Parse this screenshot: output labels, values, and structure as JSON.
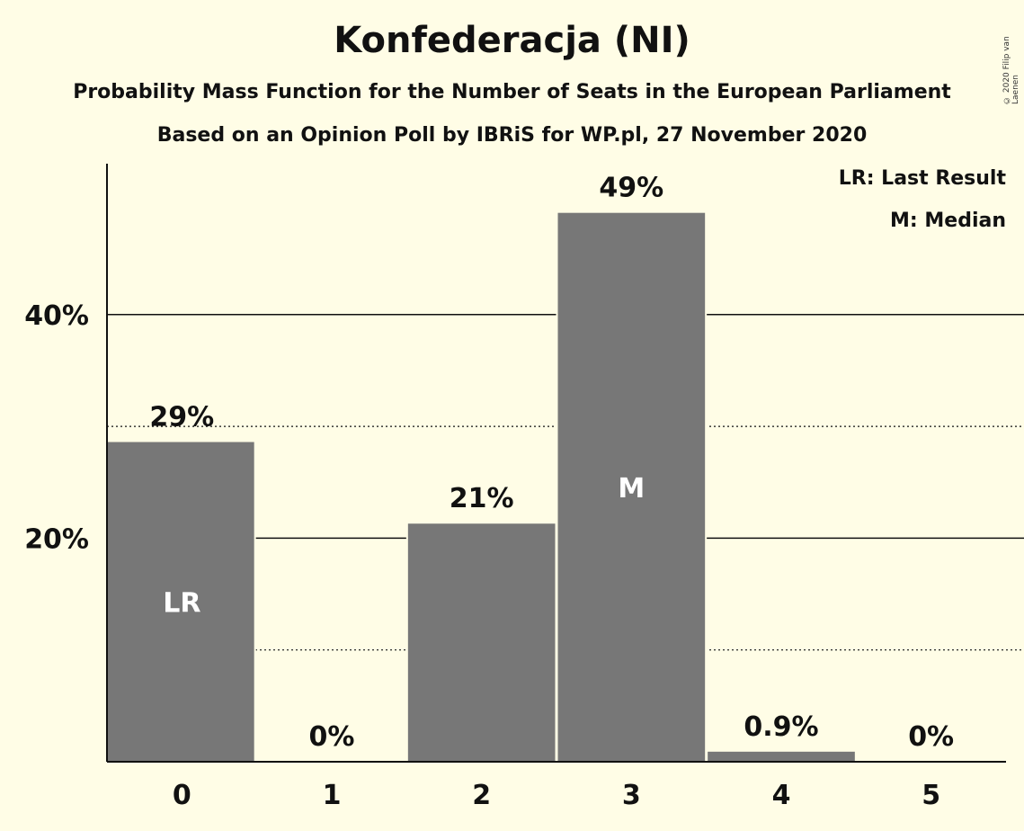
{
  "chart_data": {
    "type": "bar",
    "title": "Konfederacja (NI)",
    "subtitle_lines": [
      "Probability Mass Function for the Number of Seats in the European Parliament",
      "Based on an Opinion Poll by IBRiS for WP.pl, 27 November 2020"
    ],
    "categories": [
      "0",
      "1",
      "2",
      "3",
      "4",
      "5"
    ],
    "values": [
      28.6,
      0,
      21.3,
      49.1,
      0.9,
      0
    ],
    "value_labels": [
      "29%",
      "0%",
      "21%",
      "49%",
      "0.9%",
      "0%"
    ],
    "bar_markers": [
      "LR",
      "",
      "",
      "M",
      "",
      ""
    ],
    "ylim": [
      0,
      53.5
    ],
    "y_major_ticks": [
      20,
      40
    ],
    "y_major_tick_labels": [
      "20%",
      "40%"
    ],
    "y_minor_gridlines": [
      10,
      30
    ],
    "legend": [
      "LR: Last Result",
      "M: Median"
    ],
    "legend_position": "top-right",
    "copyright": "© 2020 Filip van Laenen",
    "colors": {
      "background": "#fffde6",
      "bar": "#777777",
      "text": "#111111"
    }
  }
}
